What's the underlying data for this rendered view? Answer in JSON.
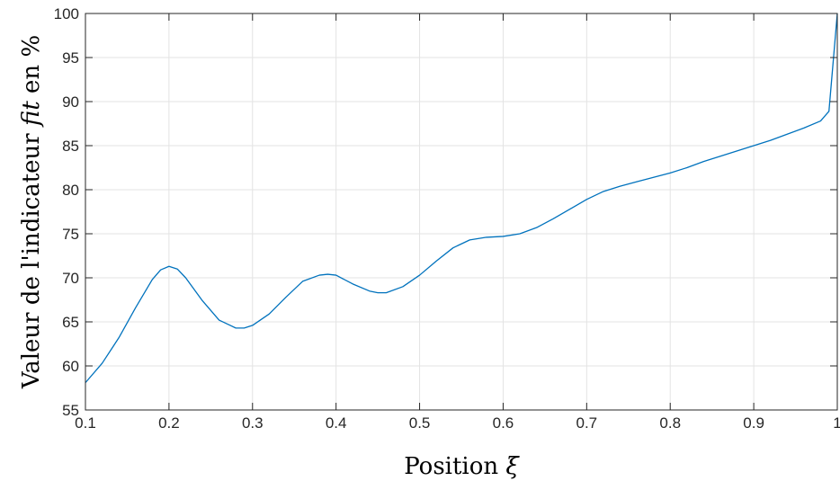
{
  "chart_data": {
    "type": "line",
    "title": "",
    "xlabel": {
      "text": "Position ",
      "symbol": "ξ"
    },
    "ylabel": {
      "prefix": "Valeur de l'indicateur ",
      "symbol": "fit",
      "suffix": " en %"
    },
    "xlim": [
      0.1,
      1.0
    ],
    "ylim": [
      55,
      100
    ],
    "x_ticks": [
      "0.1",
      "0.2",
      "0.3",
      "0.4",
      "0.5",
      "0.6",
      "0.7",
      "0.8",
      "0.9",
      "1"
    ],
    "y_ticks": [
      "55",
      "60",
      "65",
      "70",
      "75",
      "80",
      "85",
      "90",
      "95",
      "100"
    ],
    "grid": true,
    "box": true,
    "series": [
      {
        "color": "#0072BD",
        "x": [
          0.1,
          0.12,
          0.14,
          0.16,
          0.18,
          0.19,
          0.2,
          0.21,
          0.22,
          0.24,
          0.26,
          0.28,
          0.29,
          0.3,
          0.32,
          0.34,
          0.36,
          0.38,
          0.39,
          0.4,
          0.42,
          0.44,
          0.45,
          0.46,
          0.48,
          0.5,
          0.52,
          0.54,
          0.56,
          0.58,
          0.6,
          0.62,
          0.64,
          0.66,
          0.68,
          0.7,
          0.72,
          0.74,
          0.76,
          0.78,
          0.8,
          0.82,
          0.84,
          0.86,
          0.88,
          0.9,
          0.92,
          0.94,
          0.96,
          0.98,
          0.99,
          1.0
        ],
        "y": [
          58.1,
          60.3,
          63.2,
          66.6,
          69.8,
          70.9,
          71.3,
          71.0,
          70.0,
          67.4,
          65.2,
          64.3,
          64.3,
          64.6,
          65.9,
          67.8,
          69.6,
          70.3,
          70.4,
          70.3,
          69.3,
          68.5,
          68.3,
          68.3,
          69.0,
          70.3,
          71.9,
          73.4,
          74.3,
          74.6,
          74.7,
          75.0,
          75.7,
          76.7,
          77.8,
          78.9,
          79.8,
          80.4,
          80.9,
          81.4,
          81.9,
          82.5,
          83.2,
          83.8,
          84.4,
          85.0,
          85.6,
          86.3,
          87.0,
          87.8,
          88.9,
          100.0
        ]
      }
    ]
  }
}
